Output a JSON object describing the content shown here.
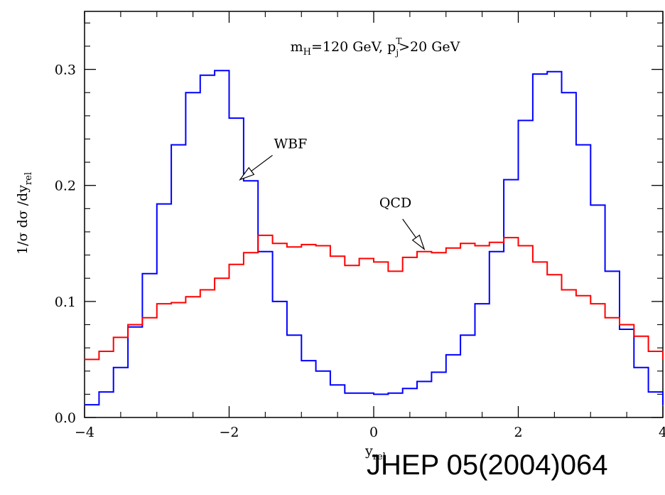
{
  "chart_data": {
    "type": "line",
    "step": true,
    "title": "",
    "header_note": {
      "prefix": "m",
      "sub": "H",
      "middle": "=120 GeV, p",
      "sup": "T",
      "sub2": "j",
      "suffix": ">20 GeV"
    },
    "xlabel": {
      "base": "y",
      "sub": "rel"
    },
    "ylabel": {
      "text": "1/σ  dσ  /dy",
      "sub": "rel"
    },
    "xlim": [
      -4,
      4
    ],
    "ylim": [
      0,
      0.35
    ],
    "xticks": [
      -4,
      -2,
      0,
      2,
      4
    ],
    "xtick_labels": [
      "−4",
      "−2",
      "0",
      "2",
      "4"
    ],
    "yticks": [
      0.0,
      0.1,
      0.2,
      0.3
    ],
    "ytick_labels": [
      "0.0",
      "0.1",
      "0.2",
      "0.3"
    ],
    "bin_edges": [
      -4.0,
      -3.8,
      -3.6,
      -3.4,
      -3.2,
      -3.0,
      -2.8,
      -2.6,
      -2.4,
      -2.2,
      -2.0,
      -1.8,
      -1.6,
      -1.4,
      -1.2,
      -1.0,
      -0.8,
      -0.6,
      -0.4,
      -0.2,
      0.0,
      0.2,
      0.4,
      0.6,
      0.8,
      1.0,
      1.2,
      1.4,
      1.6,
      1.8,
      2.0,
      2.2,
      2.4,
      2.6,
      2.8,
      3.0,
      3.2,
      3.4,
      3.6,
      3.8,
      4.0
    ],
    "series": [
      {
        "color": "#0000ff",
        "values": [
          0.011,
          0.022,
          0.043,
          0.078,
          0.124,
          0.184,
          0.235,
          0.28,
          0.295,
          0.299,
          0.258,
          0.204,
          0.143,
          0.1,
          0.071,
          0.049,
          0.04,
          0.028,
          0.021,
          0.021,
          0.02,
          0.021,
          0.025,
          0.031,
          0.039,
          0.054,
          0.071,
          0.098,
          0.143,
          0.205,
          0.256,
          0.296,
          0.298,
          0.28,
          0.235,
          0.183,
          0.126,
          0.076,
          0.043,
          0.022,
          0.011
        ]
      },
      {
        "color": "#ff0000",
        "values": [
          0.05,
          0.057,
          0.069,
          0.08,
          0.086,
          0.098,
          0.099,
          0.104,
          0.11,
          0.12,
          0.132,
          0.142,
          0.157,
          0.15,
          0.147,
          0.149,
          0.148,
          0.139,
          0.131,
          0.137,
          0.134,
          0.126,
          0.138,
          0.143,
          0.142,
          0.146,
          0.15,
          0.148,
          0.151,
          0.155,
          0.148,
          0.134,
          0.123,
          0.11,
          0.105,
          0.098,
          0.086,
          0.08,
          0.07,
          0.057,
          0.05
        ]
      }
    ],
    "annotations": [
      {
        "text": "WBF",
        "x": -1.15,
        "y": 0.232,
        "arrow_from": [
          -1.4,
          0.226
        ],
        "arrow_to": [
          -1.85,
          0.205
        ]
      },
      {
        "text": "QCD",
        "x": 0.3,
        "y": 0.181,
        "arrow_from": [
          0.4,
          0.171
        ],
        "arrow_to": [
          0.7,
          0.145
        ]
      }
    ]
  },
  "citation": "JHEP 05(2004)064"
}
